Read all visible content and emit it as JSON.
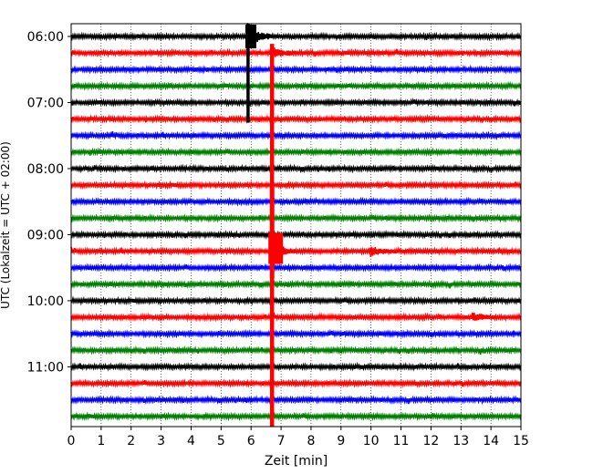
{
  "chart_data": {
    "type": "line",
    "title": "",
    "xlabel": "Zeit  [min]",
    "ylabel": "UTC (Lokalzeit = UTC + 02:00)",
    "xlim": [
      0,
      15
    ],
    "x_ticks": [
      "0",
      "1",
      "2",
      "3",
      "4",
      "5",
      "6",
      "7",
      "8",
      "9",
      "10",
      "11",
      "12",
      "13",
      "14",
      "15"
    ],
    "y_ticks": [
      "06:00",
      "07:00",
      "08:00",
      "09:00",
      "10:00",
      "11:00"
    ],
    "grid": "vertical dotted at each minute",
    "trace_start": "06:00",
    "trace_interval_minutes": 15,
    "trace_count": 24,
    "color_cycle": [
      "#000000",
      "#ff0000",
      "#0000ff",
      "#008000"
    ],
    "events": [
      {
        "trace_start": "06:00",
        "minute": 5.9,
        "amplitude": "large, extends down to 07:15 trace",
        "color": "#000000"
      },
      {
        "trace_start": "06:15",
        "minute": 6.7,
        "amplitude": "very large, extends to bottom of plot",
        "color": "#ff0000"
      },
      {
        "trace_start": "09:15",
        "minute": 6.7,
        "amplitude": "large burst",
        "color": "#ff0000"
      },
      {
        "trace_start": "09:15",
        "minute": 10.0,
        "amplitude": "small burst",
        "color": "#ff0000"
      },
      {
        "trace_start": "10:15",
        "minute": 13.4,
        "amplitude": "small burst",
        "color": "#ff0000"
      }
    ]
  }
}
